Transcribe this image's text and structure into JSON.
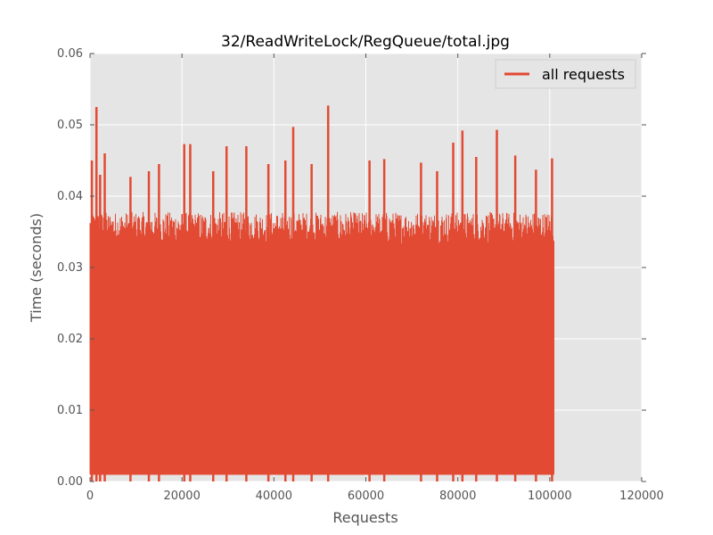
{
  "chart_data": {
    "type": "line",
    "title": "32/ReadWriteLock/RegQueue/total.jpg",
    "xlabel": "Requests",
    "ylabel": "Time (seconds)",
    "xlim": [
      0,
      120000
    ],
    "ylim": [
      0,
      0.06
    ],
    "x_ticks": [
      "0",
      "20000",
      "40000",
      "60000",
      "80000",
      "100000",
      "120000"
    ],
    "y_ticks": [
      "0.00",
      "0.01",
      "0.02",
      "0.03",
      "0.04",
      "0.05",
      "0.06"
    ],
    "grid": true,
    "legend_position": "top-right",
    "series": [
      {
        "name": "all requests",
        "color": "#E24A33",
        "x_range": [
          0,
          101000
        ],
        "min_value": 0.001,
        "baseline_max": 0.037,
        "peaks": [
          {
            "x": 400,
            "y": 0.045
          },
          {
            "x": 1400,
            "y": 0.0525
          },
          {
            "x": 2200,
            "y": 0.043
          },
          {
            "x": 3200,
            "y": 0.046
          },
          {
            "x": 8800,
            "y": 0.0427
          },
          {
            "x": 12800,
            "y": 0.0435
          },
          {
            "x": 15000,
            "y": 0.0445
          },
          {
            "x": 20500,
            "y": 0.0473
          },
          {
            "x": 21800,
            "y": 0.0473
          },
          {
            "x": 26800,
            "y": 0.0435
          },
          {
            "x": 29700,
            "y": 0.047
          },
          {
            "x": 34000,
            "y": 0.047
          },
          {
            "x": 38800,
            "y": 0.0445
          },
          {
            "x": 42500,
            "y": 0.045
          },
          {
            "x": 44200,
            "y": 0.0497
          },
          {
            "x": 48200,
            "y": 0.0445
          },
          {
            "x": 51800,
            "y": 0.0527
          },
          {
            "x": 60800,
            "y": 0.045
          },
          {
            "x": 64000,
            "y": 0.0452
          },
          {
            "x": 72000,
            "y": 0.0447
          },
          {
            "x": 75500,
            "y": 0.0435
          },
          {
            "x": 79000,
            "y": 0.0475
          },
          {
            "x": 81000,
            "y": 0.0492
          },
          {
            "x": 84000,
            "y": 0.0455
          },
          {
            "x": 88500,
            "y": 0.0493
          },
          {
            "x": 92500,
            "y": 0.0457
          },
          {
            "x": 97000,
            "y": 0.0437
          },
          {
            "x": 100500,
            "y": 0.0453
          }
        ]
      }
    ]
  }
}
